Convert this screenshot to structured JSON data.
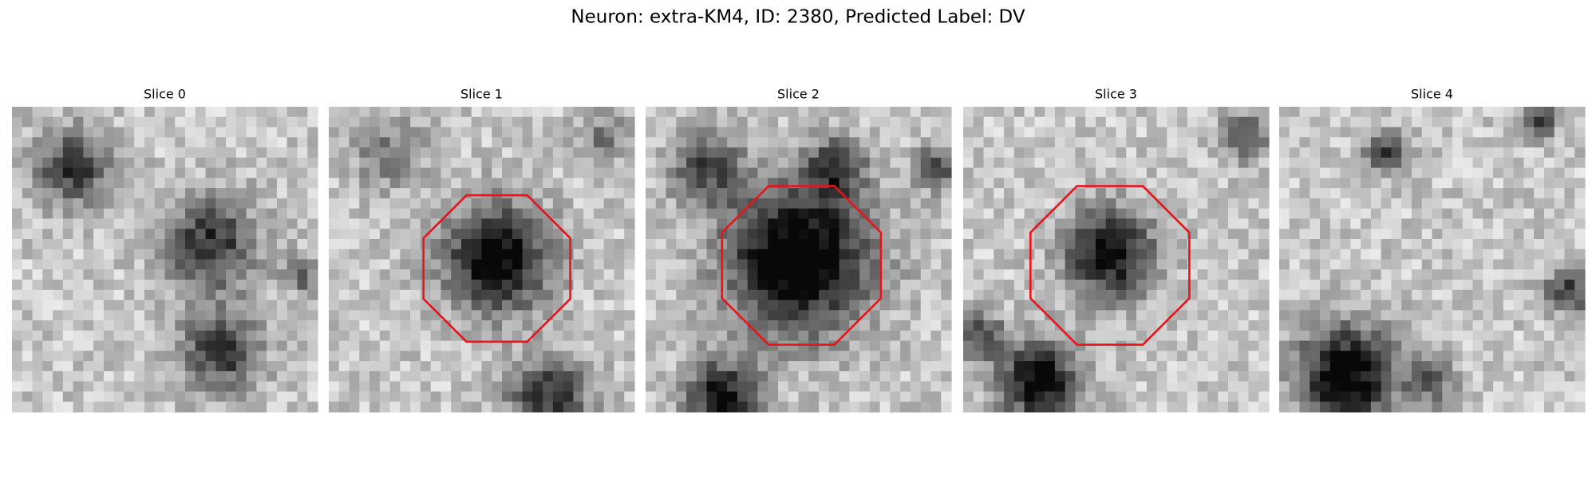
{
  "figure": {
    "title": "Neuron: extra-KM4, ID: 2380, Predicted Label: DV",
    "panels": [
      {
        "title": "Slice 0"
      },
      {
        "title": "Slice 1"
      },
      {
        "title": "Slice 2"
      },
      {
        "title": "Slice 3"
      },
      {
        "title": "Slice 4"
      }
    ]
  }
}
